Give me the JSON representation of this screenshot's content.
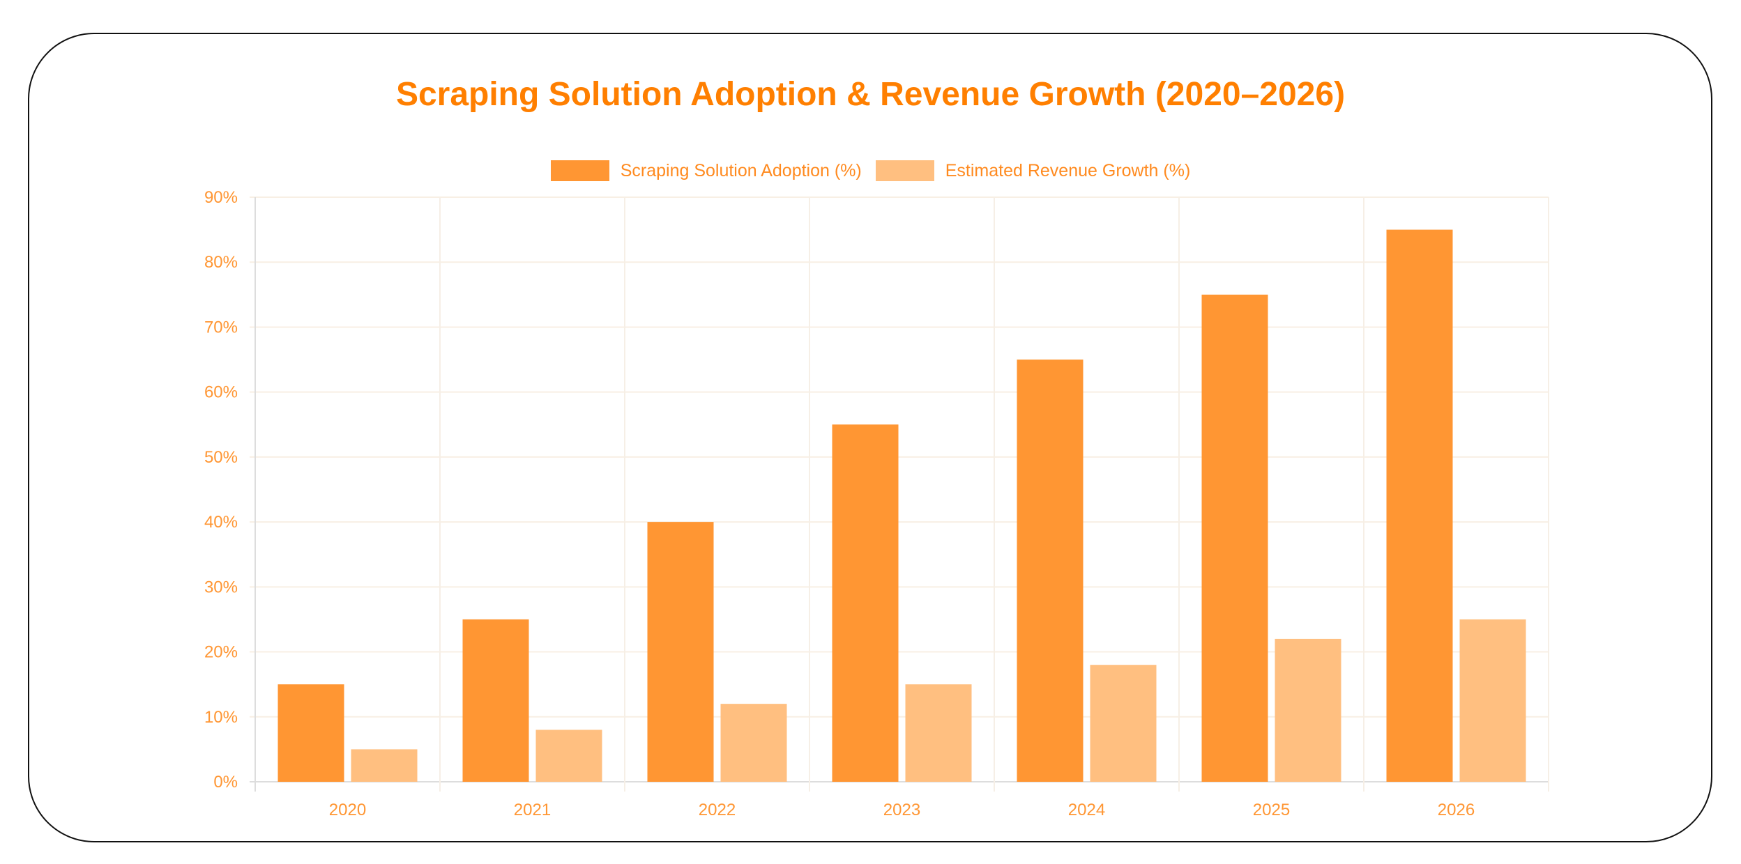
{
  "chart_data": {
    "type": "bar",
    "title": "Scraping Solution Adoption & Revenue Growth (2020–2026)",
    "categories": [
      "2020",
      "2021",
      "2022",
      "2023",
      "2024",
      "2025",
      "2026"
    ],
    "series": [
      {
        "name": "Scraping Solution Adoption (%)",
        "values": [
          15,
          25,
          40,
          55,
          65,
          75,
          85
        ],
        "color": "#FF9633"
      },
      {
        "name": "Estimated Revenue Growth (%)",
        "values": [
          5,
          8,
          12,
          15,
          18,
          22,
          25
        ],
        "color": "#FFBF80"
      }
    ],
    "ylim": [
      0,
      90
    ],
    "yticks": [
      "0%",
      "10%",
      "20%",
      "30%",
      "40%",
      "50%",
      "60%",
      "70%",
      "80%",
      "90%"
    ],
    "xlabel": "",
    "ylabel": "",
    "grid": true,
    "legend": "top",
    "title_color": "#FF7F00"
  }
}
